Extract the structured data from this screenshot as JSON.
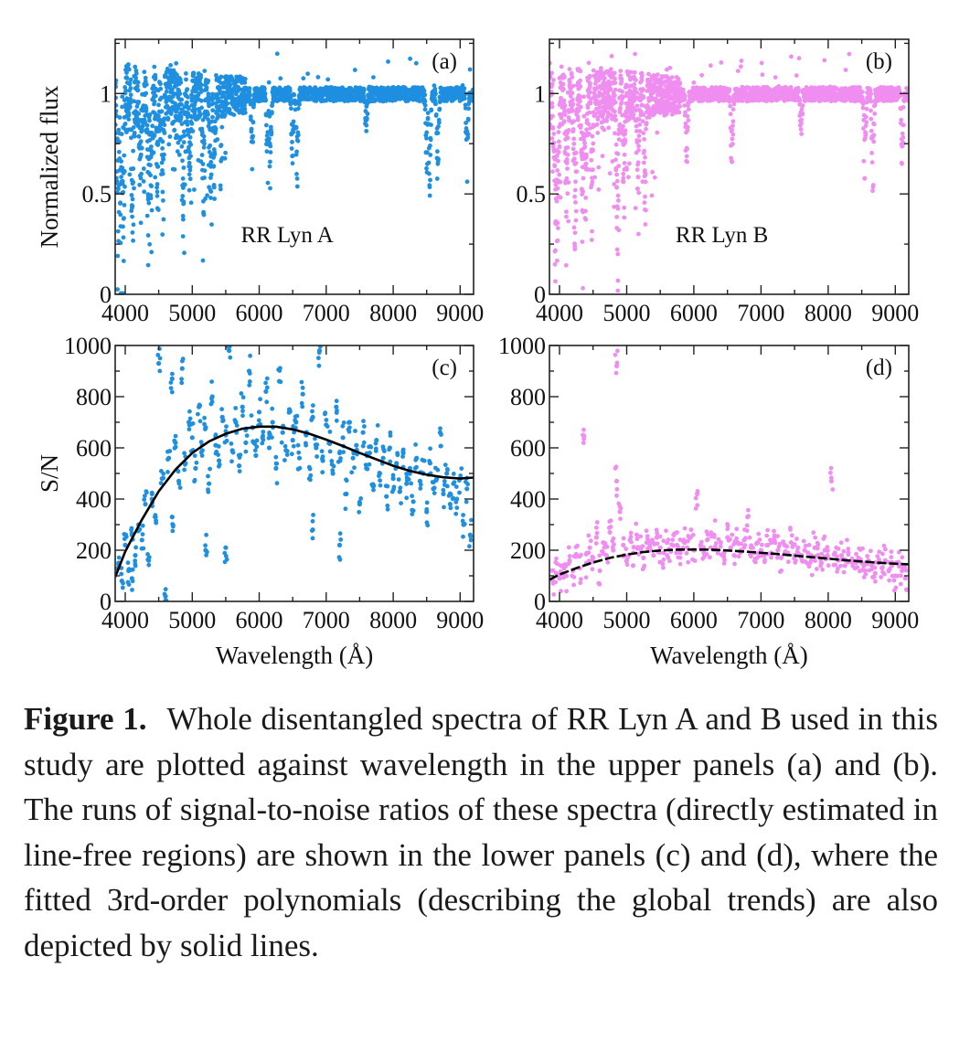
{
  "figure": {
    "label": "Figure 1.",
    "caption": "Whole disentangled spectra of RR Lyn A and B used in this study are plotted against wavelength in the upper panels (a) and (b). The runs of signal-to-noise ratios of these spectra (directly estimated in line-free regions) are shown in the lower panels (c) and (d), where the fitted 3rd-order polynomials (describing the global trends) are also depicted by solid lines."
  },
  "colors": {
    "star_a": "#1f8fe0",
    "star_b": "#ef8ef0",
    "fit": "#000000",
    "axes": "#222222"
  },
  "chart_data": [
    {
      "panel": "(a)",
      "type": "scatter",
      "annotation": "RR Lyn A",
      "xlabel": "",
      "ylabel": "Normalized flux",
      "xlim": [
        3850,
        9200
      ],
      "ylim": [
        0,
        1.27
      ],
      "xticks": [
        4000,
        5000,
        6000,
        7000,
        8000,
        9000
      ],
      "yticks": [
        0,
        0.5,
        1
      ],
      "ytick_labels": [
        "0",
        "0.5",
        "1"
      ],
      "color": "#1f8fe0",
      "continuum": 1.0,
      "absorption_lines": [
        {
          "x": 3890,
          "depth": 0.9
        },
        {
          "x": 3934,
          "depth": 0.95
        },
        {
          "x": 3970,
          "depth": 0.85
        },
        {
          "x": 4102,
          "depth": 0.7
        },
        {
          "x": 4226,
          "depth": 0.55
        },
        {
          "x": 4340,
          "depth": 0.6
        },
        {
          "x": 4383,
          "depth": 0.5
        },
        {
          "x": 4481,
          "depth": 0.45
        },
        {
          "x": 4556,
          "depth": 0.6
        },
        {
          "x": 4861,
          "depth": 0.7
        },
        {
          "x": 4957,
          "depth": 0.55
        },
        {
          "x": 5167,
          "depth": 0.6
        },
        {
          "x": 5270,
          "depth": 0.55
        },
        {
          "x": 5328,
          "depth": 0.5
        },
        {
          "x": 5890,
          "depth": 0.4
        },
        {
          "x": 6122,
          "depth": 0.5
        },
        {
          "x": 6162,
          "depth": 0.45
        },
        {
          "x": 6495,
          "depth": 0.4
        },
        {
          "x": 6563,
          "depth": 0.55
        },
        {
          "x": 7594,
          "depth": 0.22
        },
        {
          "x": 8498,
          "depth": 0.5
        },
        {
          "x": 8542,
          "depth": 0.55
        },
        {
          "x": 8662,
          "depth": 0.5
        },
        {
          "x": 9100,
          "depth": 0.45
        }
      ],
      "series": []
    },
    {
      "panel": "(b)",
      "type": "scatter",
      "annotation": "RR Lyn B",
      "xlabel": "",
      "ylabel": "",
      "xlim": [
        3850,
        9200
      ],
      "ylim": [
        0,
        1.27
      ],
      "xticks": [
        4000,
        5000,
        6000,
        7000,
        8000,
        9000
      ],
      "yticks": [
        0,
        0.5,
        1
      ],
      "ytick_labels": [
        "0",
        "0.5",
        "1"
      ],
      "color": "#ef8ef0",
      "continuum": 1.0,
      "absorption_lines": [
        {
          "x": 3934,
          "depth": 0.9
        },
        {
          "x": 3970,
          "depth": 0.85
        },
        {
          "x": 4102,
          "depth": 0.75
        },
        {
          "x": 4226,
          "depth": 0.8
        },
        {
          "x": 4340,
          "depth": 0.7
        },
        {
          "x": 4383,
          "depth": 0.65
        },
        {
          "x": 4481,
          "depth": 0.55
        },
        {
          "x": 4861,
          "depth": 0.95
        },
        {
          "x": 4957,
          "depth": 0.6
        },
        {
          "x": 5167,
          "depth": 0.55
        },
        {
          "x": 5270,
          "depth": 0.6
        },
        {
          "x": 5890,
          "depth": 0.45
        },
        {
          "x": 6563,
          "depth": 0.5
        },
        {
          "x": 7594,
          "depth": 0.25
        },
        {
          "x": 8542,
          "depth": 0.5
        },
        {
          "x": 8662,
          "depth": 0.5
        },
        {
          "x": 9100,
          "depth": 0.4
        }
      ],
      "series": []
    },
    {
      "panel": "(c)",
      "type": "scatter",
      "annotation": "",
      "xlabel": "Wavelength (Å)",
      "ylabel": "S/N",
      "xlim": [
        3850,
        9200
      ],
      "ylim": [
        0,
        1000
      ],
      "xticks": [
        4000,
        5000,
        6000,
        7000,
        8000,
        9000
      ],
      "yticks": [
        0,
        200,
        400,
        600,
        800,
        1000
      ],
      "ytick_labels": [
        "0",
        "200",
        "400",
        "600",
        "800",
        "1000"
      ],
      "color": "#1f8fe0",
      "fit": {
        "style": "solid",
        "points": [
          [
            3850,
            95
          ],
          [
            4000,
            195
          ],
          [
            4250,
            320
          ],
          [
            4500,
            430
          ],
          [
            4750,
            515
          ],
          [
            5000,
            580
          ],
          [
            5250,
            625
          ],
          [
            5500,
            655
          ],
          [
            5750,
            675
          ],
          [
            6000,
            683
          ],
          [
            6250,
            683
          ],
          [
            6500,
            672
          ],
          [
            6750,
            655
          ],
          [
            7000,
            632
          ],
          [
            7250,
            607
          ],
          [
            7500,
            580
          ],
          [
            7750,
            555
          ],
          [
            8000,
            530
          ],
          [
            8250,
            510
          ],
          [
            8500,
            495
          ],
          [
            8750,
            485
          ],
          [
            9000,
            480
          ],
          [
            9200,
            484
          ]
        ]
      },
      "scatter_points": [
        [
          3900,
          150
        ],
        [
          3950,
          80
        ],
        [
          4000,
          220
        ],
        [
          4050,
          120
        ],
        [
          4100,
          260
        ],
        [
          4150,
          180
        ],
        [
          4200,
          300
        ],
        [
          4250,
          240
        ],
        [
          4300,
          380
        ],
        [
          4350,
          160
        ],
        [
          4400,
          420
        ],
        [
          4450,
          330
        ],
        [
          4500,
          930
        ],
        [
          4550,
          480
        ],
        [
          4600,
          20
        ],
        [
          4650,
          560
        ],
        [
          4700,
          870
        ],
        [
          4750,
          620
        ],
        [
          4800,
          470
        ],
        [
          4850,
          910
        ],
        [
          4900,
          540
        ],
        [
          4950,
          700
        ],
        [
          5000,
          640
        ],
        [
          5050,
          520
        ],
        [
          5100,
          760
        ],
        [
          5150,
          590
        ],
        [
          5200,
          680
        ],
        [
          5250,
          460
        ],
        [
          5300,
          800
        ],
        [
          5350,
          610
        ],
        [
          5400,
          550
        ],
        [
          5450,
          720
        ],
        [
          5500,
          650
        ],
        [
          5550,
          980
        ],
        [
          5600,
          590
        ],
        [
          5650,
          700
        ],
        [
          5700,
          530
        ],
        [
          5750,
          760
        ],
        [
          5800,
          620
        ],
        [
          5850,
          900
        ],
        [
          5900,
          680
        ],
        [
          5950,
          570
        ],
        [
          6000,
          740
        ],
        [
          6050,
          640
        ],
        [
          6100,
          820
        ],
        [
          6150,
          600
        ],
        [
          6200,
          700
        ],
        [
          6250,
          520
        ],
        [
          6300,
          860
        ],
        [
          6350,
          660
        ],
        [
          6400,
          590
        ],
        [
          6450,
          750
        ],
        [
          6500,
          630
        ],
        [
          6550,
          700
        ],
        [
          6600,
          560
        ],
        [
          6650,
          810
        ],
        [
          6700,
          650
        ],
        [
          6750,
          480
        ],
        [
          6800,
          720
        ],
        [
          6850,
          600
        ],
        [
          6900,
          980
        ],
        [
          6950,
          550
        ],
        [
          7000,
          690
        ],
        [
          7050,
          620
        ],
        [
          7100,
          500
        ],
        [
          7150,
          760
        ],
        [
          7200,
          580
        ],
        [
          7250,
          640
        ],
        [
          7300,
          420
        ],
        [
          7350,
          700
        ],
        [
          7400,
          560
        ],
        [
          7450,
          610
        ],
        [
          7500,
          380
        ],
        [
          7550,
          660
        ],
        [
          7600,
          520
        ],
        [
          7650,
          580
        ],
        [
          7700,
          450
        ],
        [
          7750,
          630
        ],
        [
          7800,
          500
        ],
        [
          7850,
          560
        ],
        [
          7900,
          410
        ],
        [
          7950,
          600
        ],
        [
          8000,
          480
        ],
        [
          8050,
          540
        ],
        [
          8100,
          430
        ],
        [
          8150,
          580
        ],
        [
          8200,
          460
        ],
        [
          8250,
          520
        ],
        [
          8300,
          390
        ],
        [
          8350,
          560
        ],
        [
          8400,
          470
        ],
        [
          8450,
          500
        ],
        [
          8500,
          350
        ],
        [
          8550,
          540
        ],
        [
          8600,
          440
        ],
        [
          8650,
          480
        ],
        [
          8700,
          660
        ],
        [
          8750,
          420
        ],
        [
          8800,
          500
        ],
        [
          8850,
          380
        ],
        [
          8900,
          460
        ],
        [
          8950,
          400
        ],
        [
          9000,
          480
        ],
        [
          9050,
          300
        ],
        [
          9100,
          440
        ],
        [
          9150,
          260
        ],
        [
          5200,
          200
        ],
        [
          5500,
          210
        ],
        [
          6800,
          280
        ],
        [
          7200,
          220
        ],
        [
          4100,
          90
        ],
        [
          4700,
          330
        ]
      ]
    },
    {
      "panel": "(d)",
      "type": "scatter",
      "annotation": "",
      "xlabel": "Wavelength (Å)",
      "ylabel": "",
      "xlim": [
        3850,
        9200
      ],
      "ylim": [
        0,
        1000
      ],
      "xticks": [
        4000,
        5000,
        6000,
        7000,
        8000,
        9000
      ],
      "yticks": [
        0,
        200,
        400,
        600,
        800,
        1000
      ],
      "ytick_labels": [
        "0",
        "200",
        "400",
        "600",
        "800",
        "1000"
      ],
      "color": "#ef8ef0",
      "fit": {
        "style": "solid",
        "points": [
          [
            3850,
            85
          ],
          [
            4000,
            105
          ],
          [
            4250,
            130
          ],
          [
            4500,
            152
          ],
          [
            4750,
            170
          ],
          [
            5000,
            183
          ],
          [
            5250,
            193
          ],
          [
            5500,
            199
          ],
          [
            5750,
            202
          ],
          [
            6000,
            203
          ],
          [
            6250,
            202
          ],
          [
            6500,
            199
          ],
          [
            6750,
            195
          ],
          [
            7000,
            190
          ],
          [
            7250,
            185
          ],
          [
            7500,
            179
          ],
          [
            7750,
            173
          ],
          [
            8000,
            167
          ],
          [
            8250,
            161
          ],
          [
            8500,
            156
          ],
          [
            8750,
            151
          ],
          [
            9000,
            147
          ],
          [
            9200,
            145
          ]
        ]
      },
      "scatter_points": [
        [
          3900,
          80
        ],
        [
          3950,
          110
        ],
        [
          4000,
          90
        ],
        [
          4050,
          140
        ],
        [
          4100,
          100
        ],
        [
          4150,
          160
        ],
        [
          4200,
          120
        ],
        [
          4250,
          180
        ],
        [
          4300,
          130
        ],
        [
          4350,
          650
        ],
        [
          4400,
          150
        ],
        [
          4450,
          210
        ],
        [
          4500,
          170
        ],
        [
          4550,
          250
        ],
        [
          4600,
          120
        ],
        [
          4650,
          230
        ],
        [
          4700,
          180
        ],
        [
          4750,
          270
        ],
        [
          4800,
          200
        ],
        [
          4850,
          470
        ],
        [
          4900,
          350
        ],
        [
          4950,
          220
        ],
        [
          5000,
          160
        ],
        [
          5050,
          240
        ],
        [
          5100,
          190
        ],
        [
          5150,
          260
        ],
        [
          5200,
          210
        ],
        [
          5250,
          170
        ],
        [
          5300,
          230
        ],
        [
          5350,
          200
        ],
        [
          5400,
          180
        ],
        [
          5450,
          250
        ],
        [
          5500,
          210
        ],
        [
          5550,
          190
        ],
        [
          5600,
          230
        ],
        [
          5650,
          200
        ],
        [
          5700,
          260
        ],
        [
          5750,
          220
        ],
        [
          5800,
          190
        ],
        [
          5850,
          240
        ],
        [
          5900,
          210
        ],
        [
          5950,
          250
        ],
        [
          6000,
          200
        ],
        [
          6050,
          420
        ],
        [
          6100,
          220
        ],
        [
          6150,
          190
        ],
        [
          6200,
          240
        ],
        [
          6250,
          210
        ],
        [
          6300,
          260
        ],
        [
          6350,
          200
        ],
        [
          6400,
          230
        ],
        [
          6450,
          190
        ],
        [
          6500,
          250
        ],
        [
          6550,
          210
        ],
        [
          6600,
          180
        ],
        [
          6650,
          230
        ],
        [
          6700,
          200
        ],
        [
          6750,
          240
        ],
        [
          6800,
          330
        ],
        [
          6850,
          210
        ],
        [
          6900,
          190
        ],
        [
          6950,
          230
        ],
        [
          7000,
          200
        ],
        [
          7050,
          180
        ],
        [
          7100,
          220
        ],
        [
          7150,
          190
        ],
        [
          7200,
          240
        ],
        [
          7250,
          200
        ],
        [
          7300,
          170
        ],
        [
          7350,
          220
        ],
        [
          7400,
          190
        ],
        [
          7450,
          230
        ],
        [
          7500,
          180
        ],
        [
          7550,
          210
        ],
        [
          7600,
          170
        ],
        [
          7650,
          200
        ],
        [
          7700,
          190
        ],
        [
          7750,
          160
        ],
        [
          7800,
          210
        ],
        [
          7850,
          180
        ],
        [
          7900,
          150
        ],
        [
          7950,
          200
        ],
        [
          8000,
          170
        ],
        [
          8050,
          470
        ],
        [
          8100,
          190
        ],
        [
          8150,
          160
        ],
        [
          8200,
          180
        ],
        [
          8250,
          140
        ],
        [
          8300,
          190
        ],
        [
          8350,
          160
        ],
        [
          8400,
          130
        ],
        [
          8450,
          170
        ],
        [
          8500,
          150
        ],
        [
          8550,
          120
        ],
        [
          8600,
          160
        ],
        [
          8650,
          140
        ],
        [
          8700,
          110
        ],
        [
          8750,
          150
        ],
        [
          8800,
          130
        ],
        [
          8850,
          160
        ],
        [
          8900,
          120
        ],
        [
          8950,
          140
        ],
        [
          9000,
          100
        ],
        [
          9050,
          150
        ],
        [
          9100,
          120
        ],
        [
          9150,
          90
        ],
        [
          4850,
          920
        ]
      ]
    }
  ]
}
